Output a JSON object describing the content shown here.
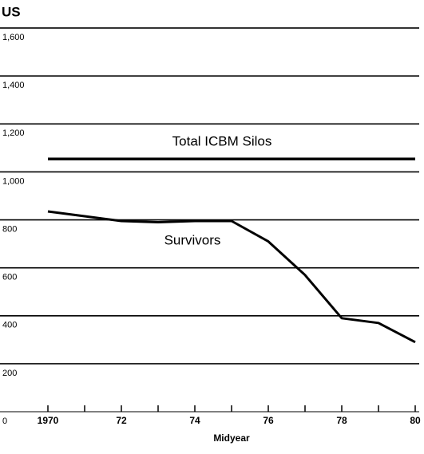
{
  "chart_data": {
    "type": "line",
    "title": "US",
    "xlabel": "Midyear",
    "xlim": [
      1970,
      1980
    ],
    "xticks": [
      1970,
      {
        "value": 1972,
        "label": "72"
      },
      {
        "value": 1974,
        "label": "74"
      },
      {
        "value": 1976,
        "label": "76"
      },
      {
        "value": 1978,
        "label": "78"
      },
      {
        "value": 1980,
        "label": "80"
      }
    ],
    "xminor_ticks": [
      1970,
      1971,
      1972,
      1973,
      1974,
      1975,
      1976,
      1977,
      1978,
      1979,
      1980
    ],
    "ylim": [
      0,
      1700
    ],
    "yticks": [
      0,
      200,
      400,
      600,
      800,
      {
        "value": 1000,
        "label": "1,000"
      },
      {
        "value": 1200,
        "label": "1,200"
      },
      {
        "value": 1400,
        "label": "1,400"
      },
      {
        "value": 1600,
        "label": "1,600"
      }
    ],
    "grid": true,
    "series": [
      {
        "name": "Total ICBM Silos",
        "color": "#000000",
        "x": [
          1970,
          1980
        ],
        "values": [
          1054,
          1054
        ]
      },
      {
        "name": "Survivors",
        "color": "#000000",
        "x": [
          1970,
          1971,
          1972,
          1973,
          1974,
          1975,
          1976,
          1977,
          1978,
          1979,
          1980
        ],
        "values": [
          835,
          815,
          795,
          790,
          795,
          795,
          710,
          570,
          390,
          370,
          290
        ]
      }
    ]
  }
}
